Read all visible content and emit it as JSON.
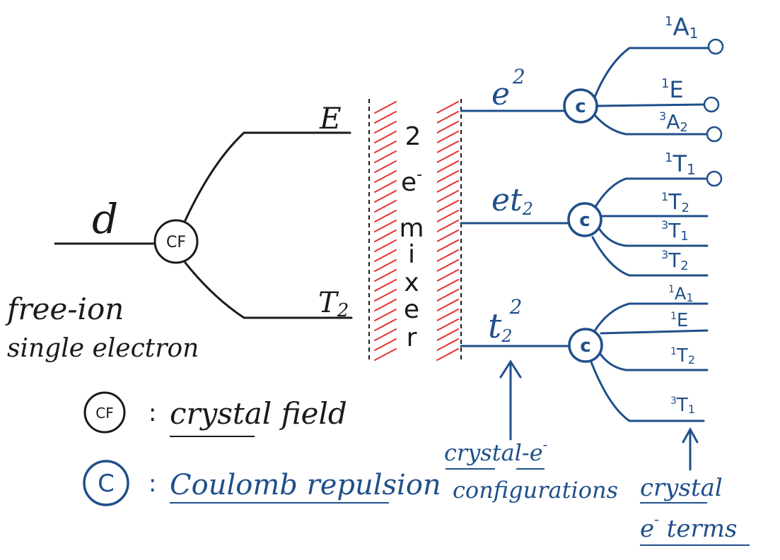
{
  "colors": {
    "ink_black": "#1a1a1a",
    "ink_blue": "#1f4f8a",
    "hatch_red": "#e83030"
  },
  "free_ion": {
    "orbital": "d",
    "caption_line1": "free-ion",
    "caption_line2": "single electron"
  },
  "cf_node": {
    "label": "CF"
  },
  "branches": {
    "upper": "E",
    "lower_main": "T",
    "lower_sub": "2"
  },
  "mixer": {
    "letters": [
      "2",
      "e",
      "m",
      "i",
      "x",
      "e",
      "r"
    ],
    "superscript": "-"
  },
  "configurations": [
    {
      "main": "e",
      "sup": "2",
      "sub": ""
    },
    {
      "main": "et",
      "sup": "",
      "sub": "2"
    },
    {
      "main": "t",
      "sup": "2",
      "sub": "2"
    }
  ],
  "c_node": {
    "label": "c"
  },
  "terms": {
    "group1": [
      {
        "mult": "1",
        "sym": "A",
        "sub": "1"
      },
      {
        "mult": "1",
        "sym": "E",
        "sub": ""
      },
      {
        "mult": "3",
        "sym": "A",
        "sub": "2"
      }
    ],
    "group2": [
      {
        "mult": "1",
        "sym": "T",
        "sub": "1"
      },
      {
        "mult": "1",
        "sym": "T",
        "sub": "2"
      },
      {
        "mult": "3",
        "sym": "T",
        "sub": "1"
      },
      {
        "mult": "3",
        "sym": "T",
        "sub": "2"
      }
    ],
    "group3": [
      {
        "mult": "1",
        "sym": "A",
        "sub": "1"
      },
      {
        "mult": "1",
        "sym": "E",
        "sub": ""
      },
      {
        "mult": "1",
        "sym": "T",
        "sub": "2"
      },
      {
        "mult": "3",
        "sym": "T",
        "sub": "1"
      }
    ]
  },
  "annotations": {
    "configs_line1": "crystal-e",
    "configs_sup": "-",
    "configs_line2": "configurations",
    "terms_line1": "crystal",
    "terms_line2_main": "e",
    "terms_line2_sup": "-",
    "terms_line2_rest": " terms"
  },
  "legend": [
    {
      "symbol": "CF",
      "separator": ":",
      "text": "crystal field"
    },
    {
      "symbol": "C",
      "separator": ":",
      "text": "Coulomb repulsion"
    }
  ]
}
